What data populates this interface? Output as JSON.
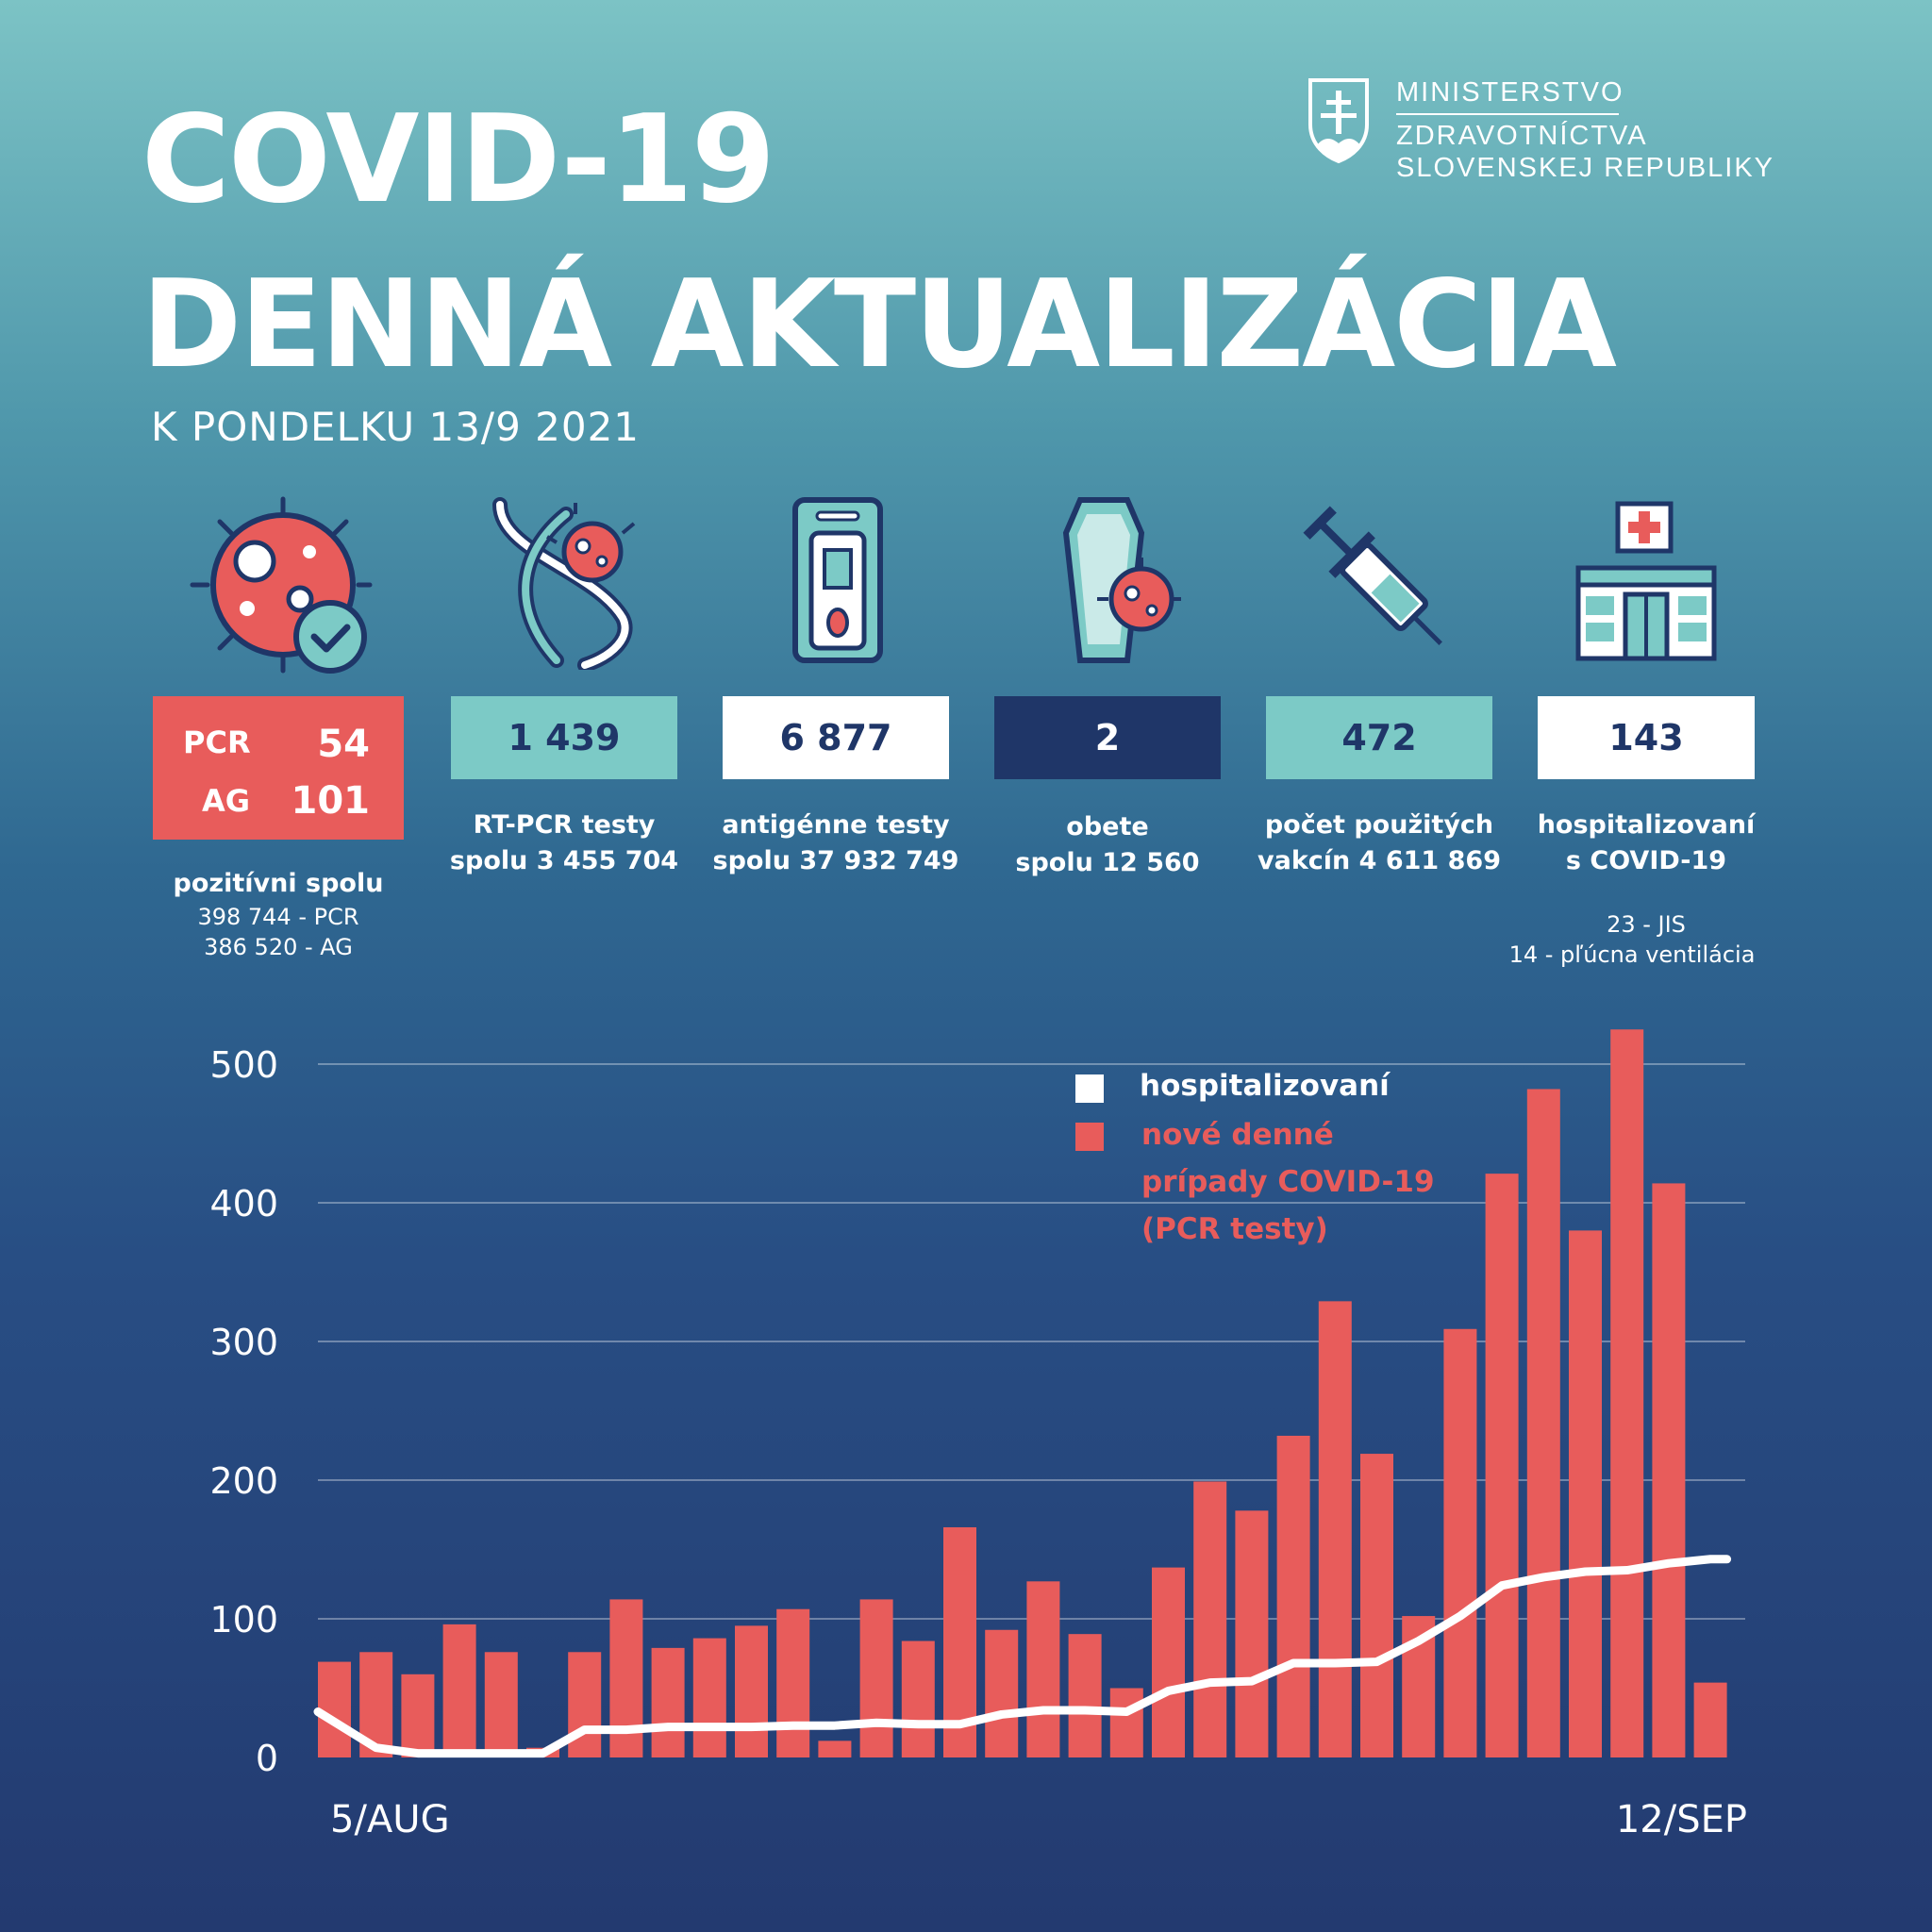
{
  "header": {
    "title_line1": "COVID-19",
    "title_line2": "DENNÁ AKTUALIZÁCIA",
    "date": "K PONDELKU 13/9 2021",
    "ministry_line1": "MINISTERSTVO",
    "ministry_line2": "ZDRAVOTNÍCTVA",
    "ministry_line3": "SLOVENSKEJ REPUBLIKY"
  },
  "stats": {
    "positive": {
      "pcr_label": "PCR",
      "pcr_value": "54",
      "ag_label": "AG",
      "ag_value": "101",
      "caption": "pozitívni spolu",
      "sub1": "398 744 - PCR",
      "sub2": "386 520 - AG"
    },
    "rtpcr": {
      "value": "1 439",
      "caption1": "RT-PCR testy",
      "caption2": "spolu 3 455 704"
    },
    "antigen": {
      "value": "6 877",
      "caption1": "antigénne testy",
      "caption2": "spolu 37 932 749"
    },
    "deaths": {
      "value": "2",
      "caption1": "obete",
      "caption2": "spolu 12 560"
    },
    "vaccines": {
      "value": "472",
      "caption1": "počet použitých",
      "caption2": "vakcín  4 611 869"
    },
    "hospital": {
      "value": "143",
      "caption1": "hospitalizovaní",
      "caption2": "s COVID-19",
      "sub1": "23 - JIS",
      "sub2": "14 - pľúcna ventilácia"
    }
  },
  "colors": {
    "red": "#e85c5b",
    "teal": "#7ccac6",
    "navy": "#1f3668",
    "white": "#ffffff"
  },
  "chart_data": {
    "type": "bar",
    "x_start_label": "5/AUG",
    "x_end_label": "12/SEP",
    "ylim": [
      0,
      500
    ],
    "yticks": [
      "0",
      "100",
      "200",
      "300",
      "400",
      "500"
    ],
    "legend": [
      "hospitalizovaní",
      "nové denné prípady COVID-19 (PCR testy)"
    ],
    "legend_lines": [
      "hospitalizovaní",
      "nové denné",
      "prípady COVID-19",
      "(PCR testy)"
    ],
    "series": [
      {
        "name": "nové denné prípady COVID-19 (PCR testy)",
        "type": "bar",
        "color": "#e85c5b",
        "values": [
          69,
          76,
          60,
          96,
          76,
          7,
          76,
          114,
          79,
          86,
          95,
          107,
          12,
          114,
          84,
          166,
          92,
          127,
          89,
          50,
          137,
          199,
          178,
          232,
          329,
          219,
          102,
          309,
          421,
          482,
          380,
          525,
          414,
          54
        ]
      },
      {
        "name": "hospitalizovaní",
        "type": "line",
        "color": "#ffffff",
        "values": [
          33,
          7,
          3,
          3,
          3,
          3,
          20,
          20,
          22,
          22,
          22,
          23,
          23,
          25,
          24,
          24,
          31,
          34,
          34,
          33,
          48,
          54,
          55,
          68,
          68,
          69,
          84,
          102,
          124,
          130,
          134,
          135,
          140,
          143
        ]
      }
    ]
  }
}
